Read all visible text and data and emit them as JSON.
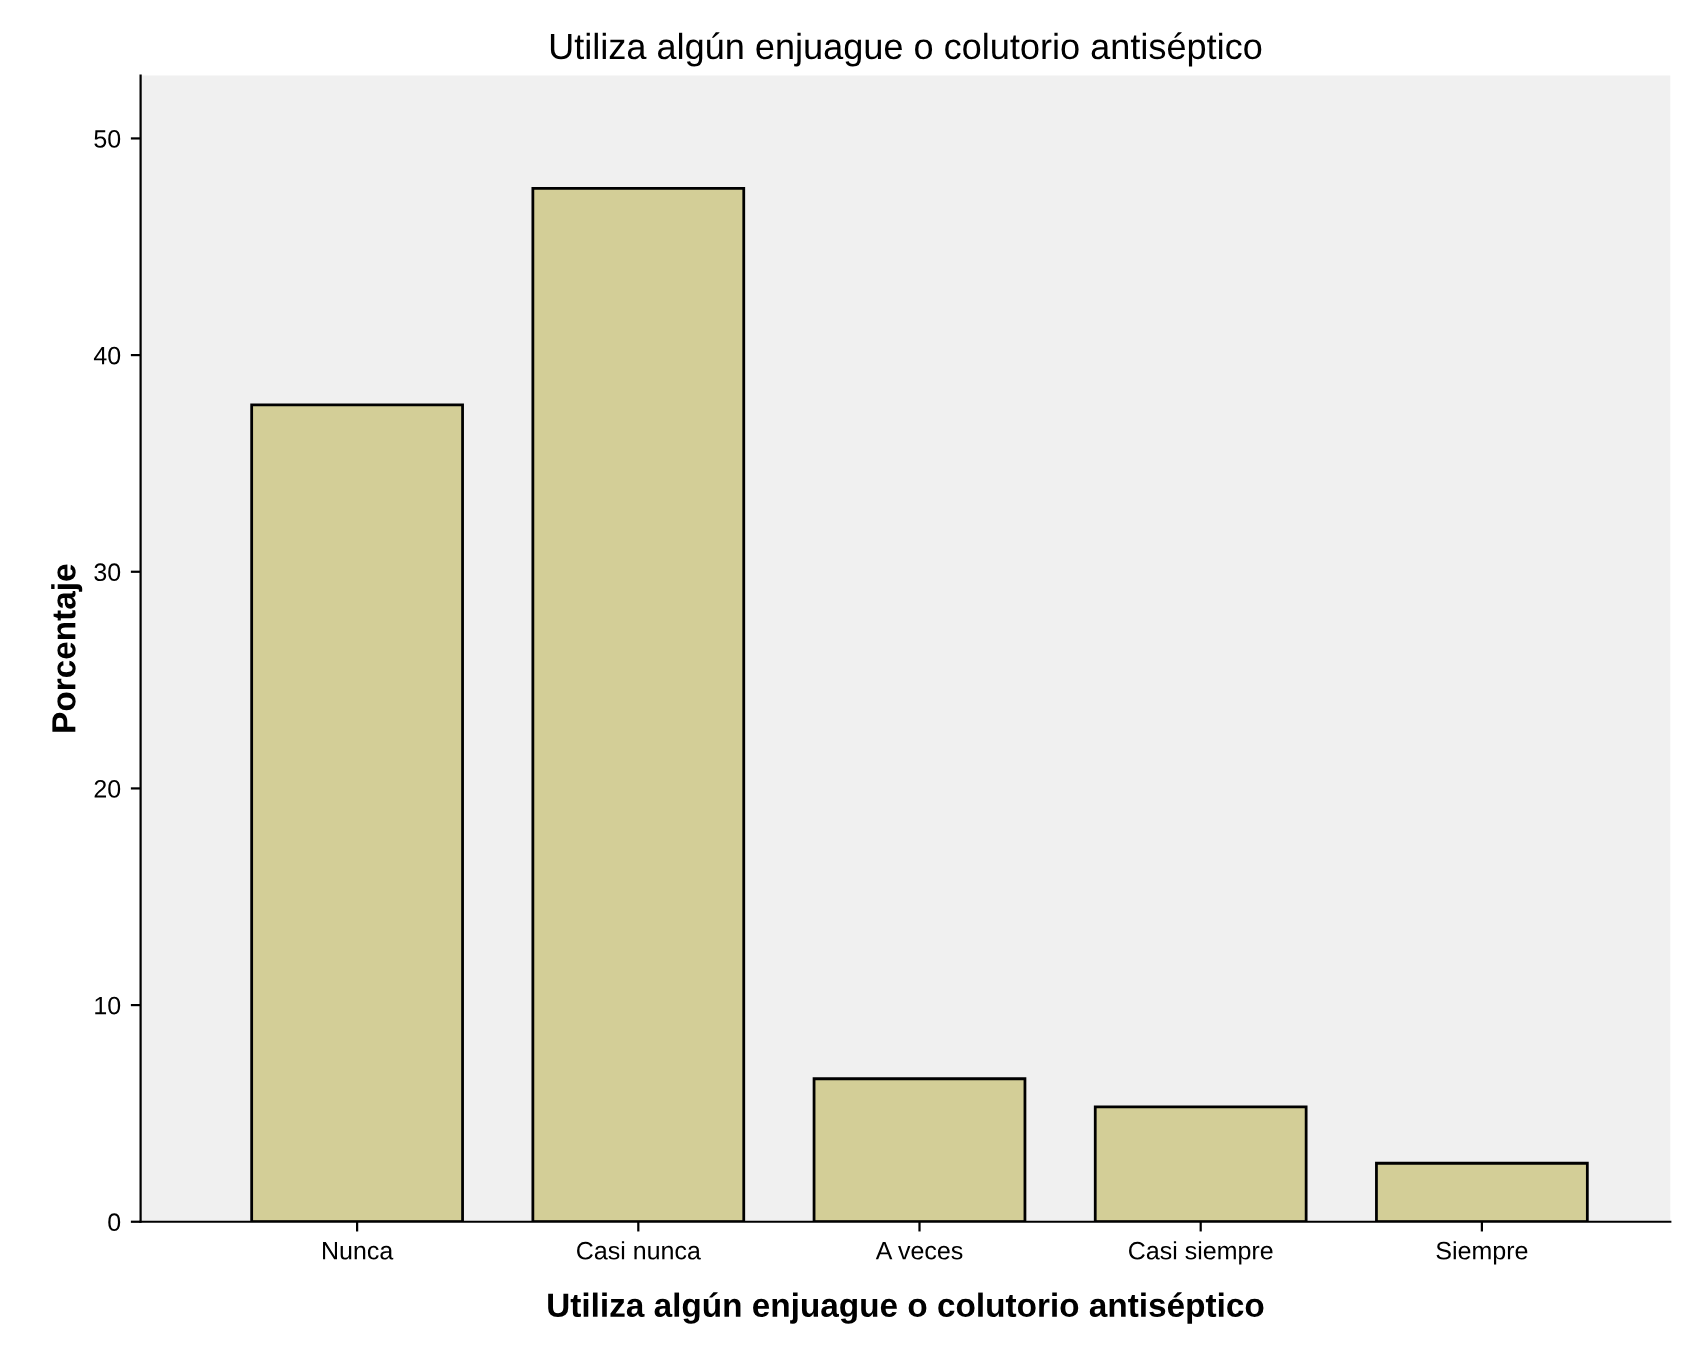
{
  "chart_data": {
    "type": "bar",
    "title": "Utiliza algún enjuague o colutorio antiséptico",
    "xlabel": "Utiliza algún enjuague o colutorio antiséptico",
    "ylabel": "Porcentaje",
    "categories": [
      "Nunca",
      "Casi nunca",
      "A veces",
      "Casi siempre",
      "Siempre"
    ],
    "values": [
      37.7,
      47.7,
      6.6,
      5.3,
      2.7
    ],
    "color": "#d3ce97",
    "ylim": [
      0,
      52.9
    ],
    "yticks": [
      0,
      10,
      20,
      30,
      40,
      50
    ],
    "grid": false
  }
}
